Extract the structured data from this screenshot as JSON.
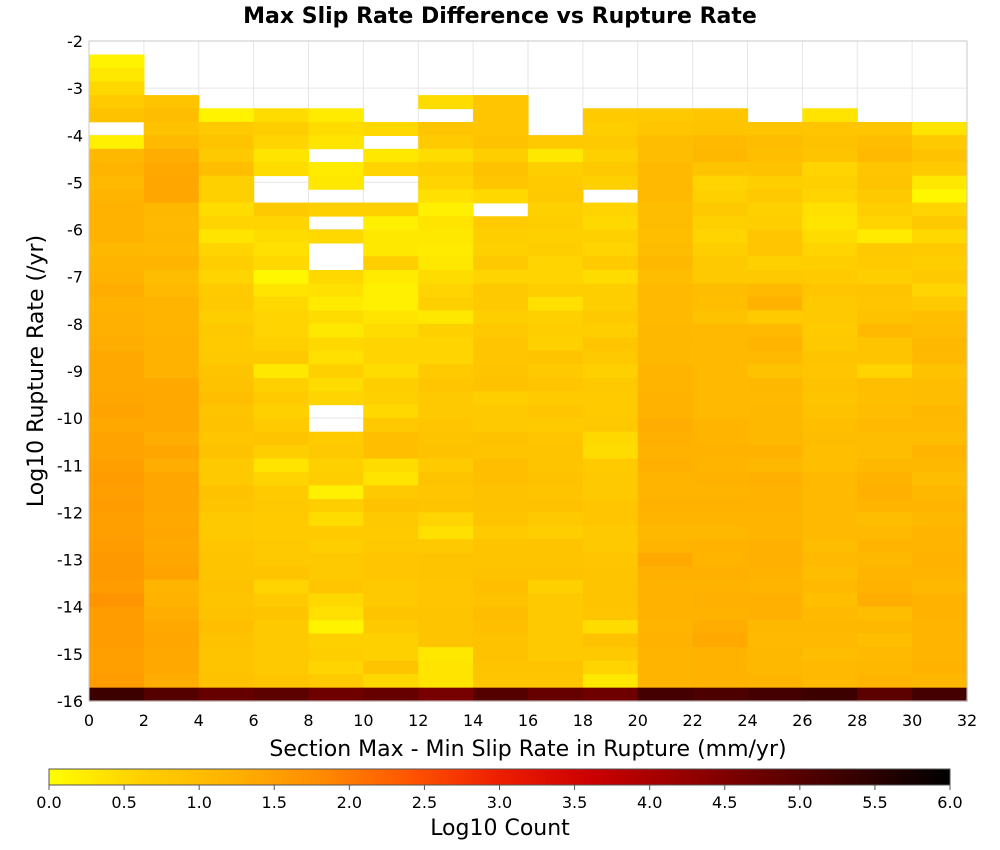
{
  "chart_data": {
    "type": "heatmap",
    "title": "Max Slip Rate Difference vs Rupture Rate",
    "xlabel": "Section Max - Min Slip Rate in Rupture (mm/yr)",
    "ylabel": "Log10 Rupture Rate (/yr)",
    "xlim": [
      0,
      32
    ],
    "ylim": [
      -16,
      -2
    ],
    "xticks": [
      "0",
      "2",
      "4",
      "6",
      "8",
      "10",
      "12",
      "14",
      "16",
      "18",
      "20",
      "22",
      "24",
      "26",
      "28",
      "30",
      "32"
    ],
    "yticks": [
      "-2",
      "-3",
      "-4",
      "-5",
      "-6",
      "-7",
      "-8",
      "-9",
      "-10",
      "-11",
      "-12",
      "-13",
      "-14",
      "-15",
      "-16"
    ],
    "grid": true,
    "x_bin_width": 2,
    "y_bin_width": 0.2857,
    "x_bins": [
      1,
      3,
      5,
      7,
      9,
      11,
      13,
      15,
      17,
      19,
      21,
      23,
      25,
      27,
      29,
      31
    ],
    "y_bins_top_to_bottom": [
      -2.14,
      -2.43,
      -2.71,
      -3.0,
      -3.29,
      -3.57,
      -3.86,
      -4.14,
      -4.43,
      -4.71,
      -5.0,
      -5.29,
      -5.57,
      -5.86,
      -6.14,
      -6.43,
      -6.71,
      -7.0,
      -7.29,
      -7.57,
      -7.86,
      -8.14,
      -8.43,
      -8.71,
      -9.0,
      -9.29,
      -9.57,
      -9.86,
      -10.14,
      -10.43,
      -10.71,
      -11.0,
      -11.29,
      -11.57,
      -11.86,
      -12.14,
      -12.43,
      -12.71,
      -13.0,
      -13.29,
      -13.57,
      -13.86,
      -14.14,
      -14.43,
      -14.71,
      -15.0,
      -15.29,
      -15.57,
      -15.86
    ],
    "z_note": "Log10 Count per cell; null = empty (white)",
    "z": [
      [
        null,
        null,
        null,
        null,
        null,
        null,
        null,
        null,
        null,
        null,
        null,
        null,
        null,
        null,
        null,
        null
      ],
      [
        0.15,
        null,
        null,
        null,
        null,
        null,
        null,
        null,
        null,
        null,
        null,
        null,
        null,
        null,
        null,
        null
      ],
      [
        0.3,
        null,
        null,
        null,
        null,
        null,
        null,
        null,
        null,
        null,
        null,
        null,
        null,
        null,
        null,
        null
      ],
      [
        0.5,
        null,
        null,
        null,
        null,
        null,
        null,
        null,
        null,
        null,
        null,
        null,
        null,
        null,
        null,
        null
      ],
      [
        0.7,
        0.85,
        null,
        null,
        null,
        null,
        0.45,
        0.8,
        null,
        null,
        null,
        null,
        null,
        null,
        null,
        null
      ],
      [
        0.9,
        1.0,
        0.15,
        0.45,
        0.25,
        null,
        null,
        0.8,
        null,
        0.7,
        0.75,
        0.8,
        null,
        0.35,
        null,
        null
      ],
      [
        null,
        0.9,
        0.75,
        0.65,
        0.45,
        0.5,
        0.85,
        0.8,
        null,
        0.65,
        0.8,
        0.85,
        0.85,
        0.8,
        0.8,
        0.35
      ],
      [
        0.2,
        1.05,
        0.85,
        0.55,
        0.35,
        null,
        0.7,
        0.9,
        0.75,
        0.75,
        1.0,
        1.05,
        1.0,
        0.9,
        1.0,
        0.75
      ],
      [
        1.1,
        1.3,
        0.75,
        0.35,
        null,
        0.3,
        0.45,
        0.65,
        0.3,
        0.6,
        1.0,
        1.1,
        0.95,
        0.85,
        1.05,
        0.9
      ],
      [
        1.15,
        1.35,
        0.95,
        0.45,
        0.25,
        0.55,
        0.65,
        0.9,
        0.65,
        0.75,
        1.05,
        0.85,
        0.9,
        0.55,
        0.8,
        0.7
      ],
      [
        1.05,
        1.4,
        0.6,
        null,
        0.3,
        null,
        0.55,
        0.8,
        0.7,
        0.6,
        1.05,
        0.55,
        0.65,
        0.6,
        0.85,
        0.3
      ],
      [
        1.15,
        1.4,
        0.6,
        null,
        null,
        null,
        0.4,
        0.5,
        0.75,
        null,
        1.05,
        0.6,
        0.75,
        0.55,
        0.75,
        0.1
      ],
      [
        1.2,
        1.1,
        0.45,
        0.75,
        0.6,
        0.6,
        0.2,
        null,
        0.6,
        0.55,
        1.0,
        0.75,
        0.6,
        0.4,
        0.65,
        0.55
      ],
      [
        1.2,
        1.05,
        0.55,
        0.55,
        null,
        0.2,
        0.35,
        0.7,
        0.65,
        0.5,
        1.0,
        0.6,
        0.65,
        0.35,
        0.55,
        0.75
      ],
      [
        1.2,
        1.1,
        0.35,
        0.45,
        0.5,
        0.3,
        0.3,
        0.65,
        0.6,
        0.6,
        0.95,
        0.55,
        0.8,
        0.45,
        0.25,
        0.5
      ],
      [
        1.1,
        1.05,
        0.55,
        0.4,
        null,
        0.3,
        0.25,
        0.6,
        0.65,
        0.55,
        1.0,
        0.65,
        0.8,
        0.55,
        0.75,
        0.7
      ],
      [
        1.15,
        1.15,
        0.65,
        0.5,
        null,
        0.65,
        0.3,
        0.75,
        0.55,
        0.7,
        1.1,
        0.75,
        0.6,
        0.65,
        0.7,
        0.65
      ],
      [
        1.2,
        1.0,
        0.55,
        0.1,
        0.5,
        0.25,
        0.45,
        0.55,
        0.55,
        0.45,
        1.0,
        0.75,
        0.75,
        0.7,
        0.65,
        0.75
      ],
      [
        1.3,
        1.05,
        0.7,
        0.35,
        0.4,
        0.2,
        0.55,
        0.75,
        0.65,
        0.65,
        1.05,
        1.0,
        1.05,
        0.8,
        0.85,
        0.55
      ],
      [
        1.2,
        1.15,
        0.75,
        0.5,
        0.25,
        0.2,
        0.6,
        0.75,
        0.4,
        0.65,
        1.05,
        0.95,
        1.2,
        0.75,
        0.8,
        0.75
      ],
      [
        1.25,
        1.15,
        0.65,
        0.55,
        0.45,
        0.35,
        0.3,
        0.65,
        0.6,
        0.75,
        1.05,
        0.9,
        0.7,
        0.75,
        0.9,
        0.95
      ],
      [
        1.25,
        1.15,
        0.75,
        0.55,
        0.3,
        0.45,
        0.6,
        0.75,
        0.65,
        0.65,
        1.1,
        1.05,
        1.05,
        0.7,
        1.05,
        1.0
      ],
      [
        1.3,
        1.2,
        0.7,
        0.6,
        0.5,
        0.55,
        0.55,
        0.8,
        0.6,
        0.8,
        1.1,
        1.05,
        1.15,
        0.75,
        0.85,
        1.1
      ],
      [
        1.35,
        1.2,
        0.75,
        0.75,
        0.4,
        0.55,
        0.55,
        0.8,
        0.85,
        0.75,
        1.1,
        1.05,
        1.05,
        0.85,
        0.85,
        1.05
      ],
      [
        1.35,
        1.2,
        0.85,
        0.3,
        0.6,
        0.45,
        0.7,
        0.85,
        0.75,
        0.6,
        1.15,
        1.05,
        0.9,
        0.8,
        0.55,
        0.9
      ],
      [
        1.35,
        1.35,
        0.9,
        0.6,
        0.45,
        0.65,
        0.8,
        0.9,
        0.8,
        0.75,
        1.15,
        1.05,
        1.1,
        0.9,
        0.95,
        1.0
      ],
      [
        1.4,
        1.35,
        0.95,
        0.7,
        0.55,
        0.6,
        0.75,
        0.65,
        0.7,
        0.7,
        1.2,
        1.05,
        1.05,
        0.85,
        0.95,
        1.0
      ],
      [
        1.45,
        1.35,
        0.85,
        0.6,
        null,
        0.5,
        0.75,
        0.75,
        0.8,
        0.7,
        1.2,
        1.05,
        1.1,
        0.9,
        1.0,
        1.1
      ],
      [
        1.35,
        1.35,
        0.9,
        0.7,
        null,
        0.75,
        0.8,
        0.75,
        0.7,
        0.75,
        1.3,
        1.15,
        1.1,
        0.95,
        1.05,
        1.05
      ],
      [
        1.45,
        1.3,
        0.8,
        0.85,
        0.7,
        0.95,
        0.85,
        0.9,
        0.8,
        0.5,
        1.25,
        1.15,
        1.1,
        1.0,
        1.0,
        1.0
      ],
      [
        1.45,
        1.4,
        0.9,
        0.65,
        0.75,
        0.95,
        0.9,
        0.85,
        0.85,
        0.45,
        1.2,
        1.2,
        1.2,
        0.95,
        1.0,
        1.15
      ],
      [
        1.5,
        1.3,
        0.75,
        0.35,
        0.6,
        0.45,
        0.7,
        0.95,
        0.85,
        0.7,
        1.25,
        1.15,
        1.1,
        0.95,
        1.1,
        1.1
      ],
      [
        1.55,
        1.4,
        0.75,
        0.55,
        0.65,
        0.35,
        0.85,
        0.95,
        0.9,
        0.75,
        1.15,
        1.2,
        1.25,
        1.05,
        1.2,
        1.0
      ],
      [
        1.5,
        1.4,
        0.9,
        0.7,
        0.2,
        0.75,
        0.8,
        0.9,
        0.85,
        0.75,
        1.15,
        1.15,
        1.2,
        1.05,
        1.25,
        1.1
      ],
      [
        1.55,
        1.4,
        0.85,
        0.75,
        0.65,
        0.9,
        0.85,
        0.9,
        0.9,
        0.8,
        1.2,
        1.2,
        1.2,
        1.05,
        1.15,
        1.15
      ],
      [
        1.5,
        1.35,
        0.75,
        0.7,
        0.45,
        0.75,
        0.55,
        0.85,
        0.75,
        0.8,
        1.15,
        1.15,
        1.15,
        1.05,
        1.0,
        1.1
      ],
      [
        1.5,
        1.4,
        0.75,
        0.7,
        0.7,
        0.7,
        0.4,
        0.7,
        0.65,
        0.75,
        1.1,
        1.1,
        1.15,
        1.05,
        1.05,
        1.15
      ],
      [
        1.55,
        1.35,
        0.8,
        0.75,
        0.65,
        0.75,
        0.75,
        0.85,
        0.85,
        0.75,
        1.15,
        1.2,
        1.25,
        1.0,
        1.15,
        1.15
      ],
      [
        1.6,
        1.4,
        0.85,
        0.75,
        0.75,
        0.8,
        0.85,
        0.85,
        0.85,
        0.8,
        1.35,
        1.15,
        1.25,
        1.05,
        1.1,
        1.2
      ],
      [
        1.6,
        1.45,
        0.85,
        0.85,
        0.75,
        0.8,
        0.85,
        0.9,
        0.9,
        0.85,
        1.25,
        1.25,
        1.2,
        1.0,
        1.15,
        1.15
      ],
      [
        1.55,
        1.15,
        0.9,
        0.55,
        0.8,
        0.75,
        0.8,
        0.95,
        0.6,
        0.85,
        1.2,
        1.2,
        1.15,
        1.05,
        1.2,
        1.1
      ],
      [
        1.7,
        1.2,
        0.85,
        0.7,
        0.5,
        0.75,
        0.8,
        0.9,
        0.75,
        0.85,
        1.2,
        1.25,
        1.25,
        0.95,
        1.3,
        1.2
      ],
      [
        1.55,
        1.3,
        0.9,
        0.85,
        0.4,
        0.85,
        0.85,
        1.0,
        0.75,
        0.8,
        1.2,
        1.2,
        1.25,
        1.05,
        1.0,
        1.2
      ],
      [
        1.55,
        1.35,
        0.95,
        0.75,
        0.15,
        0.75,
        0.85,
        0.95,
        0.75,
        0.45,
        1.15,
        1.3,
        1.1,
        1.1,
        1.1,
        1.15
      ],
      [
        1.55,
        1.4,
        0.9,
        0.75,
        0.6,
        0.6,
        0.85,
        0.9,
        0.75,
        0.9,
        1.2,
        1.35,
        1.05,
        1.05,
        0.95,
        1.15
      ],
      [
        1.5,
        1.35,
        0.85,
        0.75,
        0.65,
        0.6,
        0.3,
        0.9,
        0.75,
        0.75,
        1.15,
        1.2,
        1.1,
        1.0,
        1.05,
        1.15
      ],
      [
        1.5,
        1.35,
        0.85,
        0.75,
        0.55,
        0.85,
        0.35,
        0.85,
        0.85,
        0.55,
        1.15,
        1.2,
        1.1,
        1.05,
        1.1,
        1.2
      ],
      [
        1.55,
        1.3,
        0.9,
        0.8,
        0.7,
        0.5,
        0.35,
        0.8,
        0.8,
        0.3,
        1.15,
        1.2,
        1.15,
        1.05,
        1.15,
        1.1
      ],
      [
        5.3,
        5.0,
        4.8,
        4.9,
        4.7,
        4.8,
        4.6,
        5.0,
        4.8,
        4.7,
        5.2,
        5.1,
        5.2,
        5.3,
        4.9,
        5.2
      ]
    ],
    "colorbar": {
      "label": "Log10 Count",
      "min": 0.0,
      "max": 6.0,
      "ticks": [
        "0.0",
        "0.5",
        "1.0",
        "1.5",
        "2.0",
        "2.5",
        "3.0",
        "3.5",
        "4.0",
        "4.5",
        "5.0",
        "5.5",
        "6.0"
      ],
      "colors": [
        "#ffff00",
        "#ffd000",
        "#ffb300",
        "#ff8c00",
        "#ff5500",
        "#ee1d00",
        "#cc0000",
        "#990000",
        "#660000",
        "#330000",
        "#000000"
      ]
    }
  }
}
